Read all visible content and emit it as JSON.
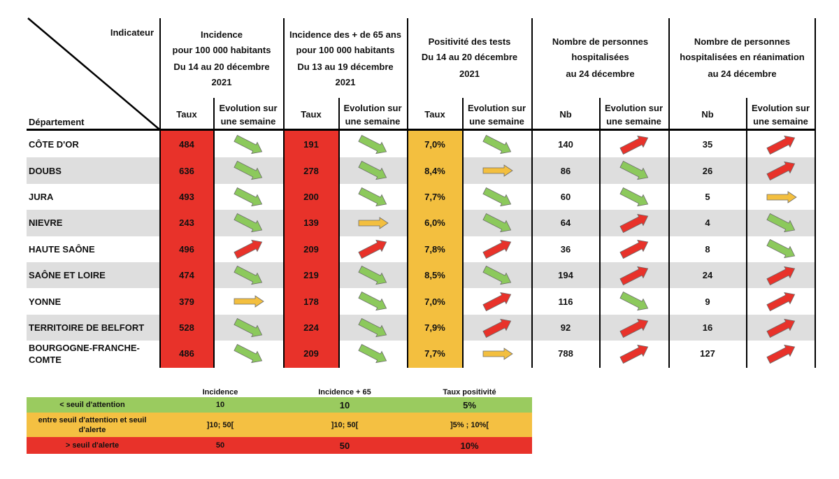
{
  "colors": {
    "red": "#e8322a",
    "orange": "#f3bf3f",
    "stripe": "#dedede",
    "legend_green": "#9acb5f",
    "legend_orange": "#f4c042",
    "legend_red": "#e8322a",
    "arrow_green": "#8cc95c",
    "arrow_orange": "#f3bf3f",
    "arrow_red": "#e8322a"
  },
  "header": {
    "indicateur": "Indicateur",
    "departement": "Département",
    "groups": [
      {
        "lines": [
          "Incidence",
          "pour 100 000 habitants",
          "Du  14 au 20 décembre",
          "2021"
        ],
        "sub1": "Taux",
        "sub2": [
          "Evolution sur",
          "une semaine"
        ]
      },
      {
        "lines": [
          "Incidence des + de 65 ans",
          "pour 100 000 habitants",
          "Du 13 au 19 décembre",
          "2021"
        ],
        "sub1": "Taux",
        "sub2": [
          "Evolution sur",
          "une semaine"
        ]
      },
      {
        "lines": [
          "Positivité des tests",
          "Du 14 au 20 décembre",
          "2021"
        ],
        "sub1": "Taux",
        "sub2": [
          "Evolution sur",
          "une semaine"
        ]
      },
      {
        "lines": [
          "Nombre de personnes",
          "hospitalisées",
          "au 24 décembre"
        ],
        "sub1": "Nb",
        "sub2": [
          "Evolution sur",
          "une semaine"
        ]
      },
      {
        "lines": [
          "Nombre de personnes",
          "hospitalisées en réanimation",
          "au 24 décembre"
        ],
        "sub1": "Nb",
        "sub2": [
          "Evolution sur",
          "une semaine"
        ]
      }
    ]
  },
  "rows": [
    {
      "dept": [
        "CÔTE D'OR"
      ],
      "values": [
        "484",
        "191",
        "7,0%",
        "140",
        "35"
      ],
      "trends": [
        "down",
        "down",
        "down",
        "up",
        "up"
      ]
    },
    {
      "dept": [
        "DOUBS"
      ],
      "values": [
        "636",
        "278",
        "8,4%",
        "86",
        "26"
      ],
      "trends": [
        "down",
        "down",
        "flat",
        "down",
        "up"
      ]
    },
    {
      "dept": [
        "JURA"
      ],
      "values": [
        "493",
        "200",
        "7,7%",
        "60",
        "5"
      ],
      "trends": [
        "down",
        "down",
        "down",
        "down",
        "flat"
      ]
    },
    {
      "dept": [
        "NIEVRE"
      ],
      "values": [
        "243",
        "139",
        "6,0%",
        "64",
        "4"
      ],
      "trends": [
        "down",
        "flat",
        "down",
        "up",
        "down"
      ]
    },
    {
      "dept": [
        "HAUTE SAÔNE"
      ],
      "values": [
        "496",
        "209",
        "7,8%",
        "36",
        "8"
      ],
      "trends": [
        "up",
        "up",
        "up",
        "up",
        "down"
      ]
    },
    {
      "dept": [
        "SAÔNE ET LOIRE"
      ],
      "values": [
        "474",
        "219",
        "8,5%",
        "194",
        "24"
      ],
      "trends": [
        "down",
        "down",
        "down",
        "up",
        "up"
      ]
    },
    {
      "dept": [
        "YONNE"
      ],
      "values": [
        "379",
        "178",
        "7,0%",
        "116",
        "9"
      ],
      "trends": [
        "flat",
        "down",
        "up",
        "down",
        "up"
      ]
    },
    {
      "dept": [
        "TERRITOIRE DE BELFORT"
      ],
      "values": [
        "528",
        "224",
        "7,9%",
        "92",
        "16"
      ],
      "trends": [
        "down",
        "down",
        "up",
        "up",
        "up"
      ]
    },
    {
      "dept": [
        "BOURGOGNE-FRANCHE-",
        "COMTE"
      ],
      "values": [
        "486",
        "209",
        "7,7%",
        "788",
        "127"
      ],
      "trends": [
        "down",
        "down",
        "flat",
        "up",
        "up"
      ]
    }
  ],
  "legend": {
    "headers": [
      "Incidence",
      "Incidence + 65",
      "Taux positivité"
    ],
    "rows": [
      {
        "label": [
          "< seuil d'attention"
        ],
        "values": [
          "10",
          "10",
          "5%"
        ],
        "color": "green"
      },
      {
        "label": [
          "entre seuil d'attention et seuil",
          "d'alerte"
        ],
        "values": [
          "]10; 50[",
          "]10; 50[",
          "]5% ; 10%["
        ],
        "color": "orange"
      },
      {
        "label": [
          "> seuil d'alerte"
        ],
        "values": [
          "50",
          "50",
          "10%"
        ],
        "color": "red"
      }
    ]
  }
}
